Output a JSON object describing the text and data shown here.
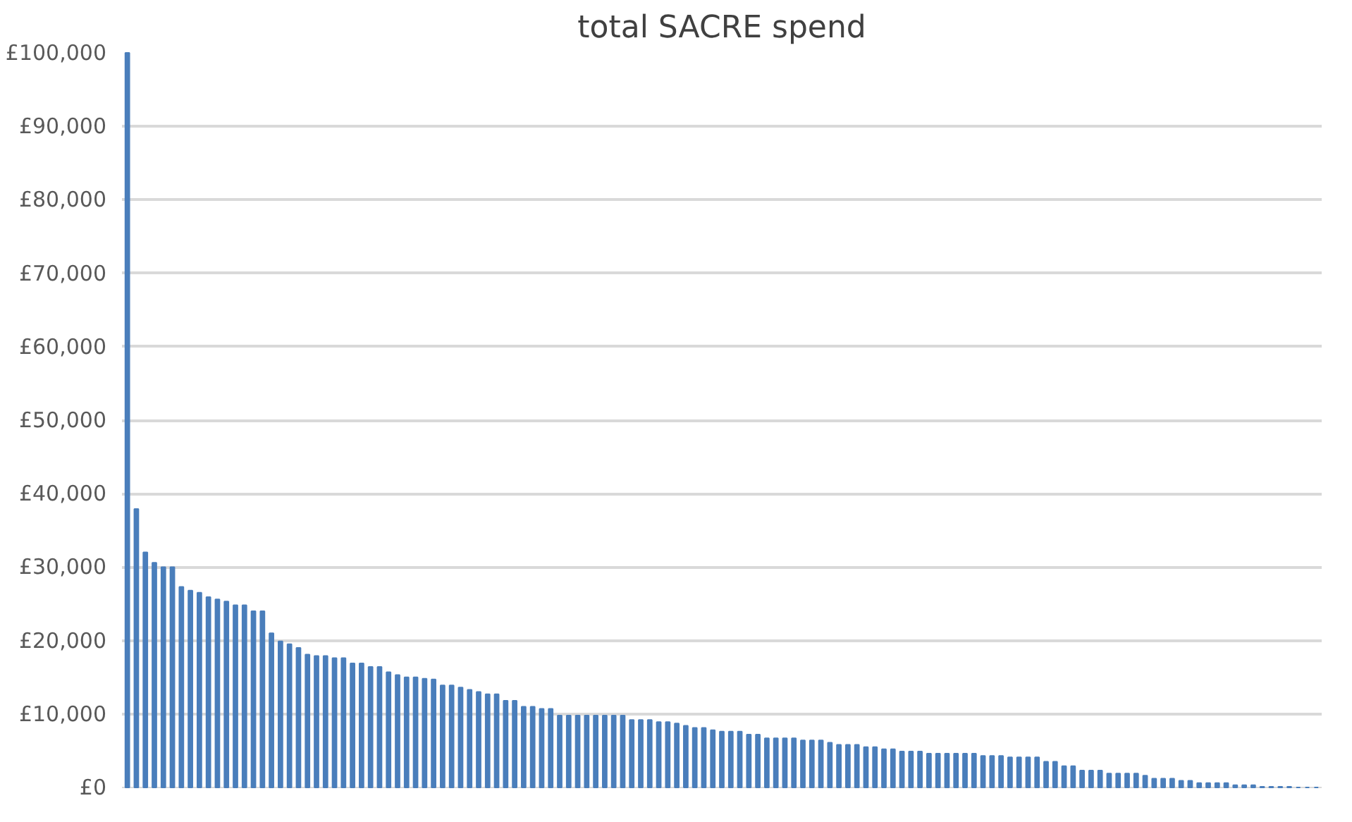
{
  "chart_data": {
    "type": "bar",
    "title": "total SACRE spend",
    "categories": [
      null,
      null,
      null,
      null,
      null,
      null,
      null,
      null,
      null,
      null,
      null,
      null,
      null,
      null,
      null,
      null,
      null,
      null,
      null,
      null,
      null,
      null,
      null,
      null,
      null,
      null,
      null,
      null,
      null,
      null,
      null,
      null,
      null,
      null,
      null,
      null,
      null,
      null,
      null,
      null,
      null,
      null,
      null,
      null,
      null,
      null,
      null,
      null,
      null,
      null,
      null,
      null,
      null,
      null,
      null,
      null,
      null,
      null,
      null,
      null,
      null,
      null,
      null,
      null,
      null,
      null,
      null,
      null,
      null,
      null,
      null,
      null,
      null,
      null,
      null,
      null,
      null,
      null,
      null,
      null,
      null,
      null,
      null,
      null,
      null,
      null,
      null,
      null,
      null,
      null,
      null,
      null,
      null,
      null,
      null,
      null,
      null,
      null,
      null,
      null,
      null,
      null,
      null,
      null,
      null,
      null,
      null,
      null,
      null,
      null,
      null,
      null,
      null,
      null,
      null,
      null,
      null,
      null,
      null,
      null,
      null,
      null,
      null,
      null,
      null,
      null,
      null,
      null,
      null,
      null,
      null,
      null,
      null
    ],
    "values": [
      100000,
      37900,
      32000,
      30600,
      30000,
      30000,
      27300,
      26800,
      26500,
      25900,
      25600,
      25300,
      24800,
      24800,
      24000,
      24000,
      21000,
      19900,
      19500,
      19000,
      18100,
      17900,
      17900,
      17600,
      17600,
      16900,
      16900,
      16400,
      16400,
      15700,
      15300,
      15000,
      15000,
      14800,
      14700,
      13900,
      13900,
      13600,
      13300,
      13000,
      12700,
      12700,
      11800,
      11800,
      11000,
      11000,
      10700,
      10700,
      9800,
      9800,
      9800,
      9800,
      9800,
      9800,
      9800,
      9800,
      9200,
      9200,
      9200,
      8900,
      8900,
      8700,
      8400,
      8100,
      8100,
      7800,
      7600,
      7600,
      7600,
      7200,
      7200,
      6700,
      6700,
      6700,
      6700,
      6400,
      6400,
      6400,
      6100,
      5800,
      5800,
      5800,
      5500,
      5500,
      5200,
      5200,
      4900,
      4900,
      4900,
      4600,
      4600,
      4600,
      4600,
      4600,
      4600,
      4300,
      4300,
      4300,
      4100,
      4100,
      4100,
      4100,
      3500,
      3500,
      2900,
      2900,
      2300,
      2300,
      2300,
      1900,
      1900,
      1900,
      1900,
      1600,
      1200,
      1200,
      1200,
      900,
      900,
      600,
      600,
      600,
      600,
      300,
      300,
      300,
      100,
      100,
      100,
      100,
      0,
      0,
      0
    ],
    "color": "#4a7ebb",
    "ylim": [
      0,
      100000
    ],
    "yticks": [
      {
        "value": 0,
        "label": "£0"
      },
      {
        "value": 10000,
        "label": "£10,000"
      },
      {
        "value": 20000,
        "label": "£20,000"
      },
      {
        "value": 30000,
        "label": "£30,000"
      },
      {
        "value": 40000,
        "label": "£40,000"
      },
      {
        "value": 50000,
        "label": "£50,000"
      },
      {
        "value": 60000,
        "label": "£60,000"
      },
      {
        "value": 70000,
        "label": "£70,000"
      },
      {
        "value": 80000,
        "label": "£80,000"
      },
      {
        "value": 90000,
        "label": "£90,000"
      },
      {
        "value": 100000,
        "label": "£100,000"
      }
    ],
    "grid": "y"
  }
}
